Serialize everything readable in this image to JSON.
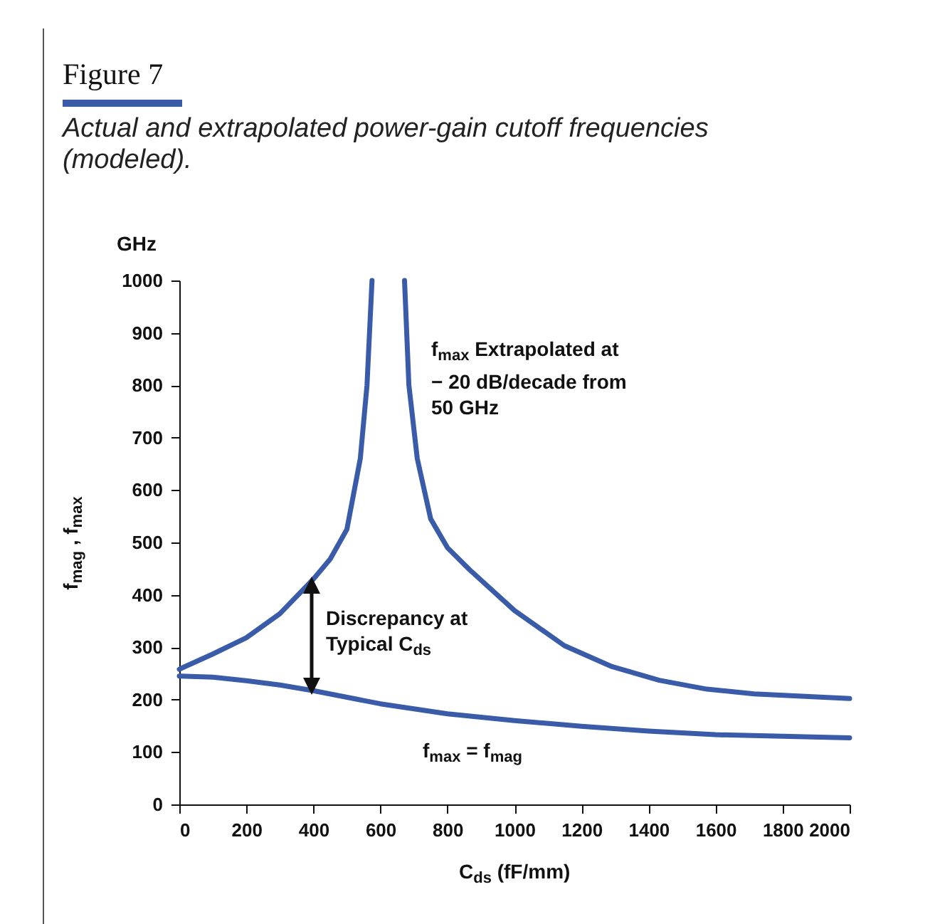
{
  "chart_data": {
    "type": "line",
    "title": "Figure 7",
    "subtitle": "Actual and extrapolated power-gain cutoff frequencies (modeled).",
    "xlabel": "C$_{ds}$ (fF/mm)",
    "ylabel": "f$_{mag}$ , f$_{max}$",
    "xlim": [
      0,
      2000
    ],
    "xticks": [
      0,
      200,
      400,
      600,
      800,
      1000,
      1200,
      1400,
      1600,
      1800,
      2000
    ],
    "ylim": [
      0,
      1000
    ],
    "yticks": [
      0,
      100,
      200,
      300,
      400,
      500,
      600,
      700,
      800,
      900,
      1000
    ],
    "grid": false,
    "legend": false,
    "marker": "none",
    "line_style": "solid",
    "series": [
      {
        "name": "f$_{max}$ Extrapolated at  − 20 dB/decade from 50 GHz",
        "color": "#3a5ba8",
        "x": [
          0,
          100,
          200,
          300,
          400,
          450,
          500,
          540,
          560,
          575,
          625,
          672,
          685,
          710,
          750,
          800,
          866,
          1000,
          1149,
          1291,
          1432,
          1574,
          1715,
          2000
        ],
        "values": [
          258,
          287,
          318,
          364,
          430,
          468,
          525,
          660,
          800,
          1000,
          null,
          1000,
          800,
          660,
          545,
          490,
          448,
          370,
          303,
          263,
          237,
          220,
          211,
          202
        ]
      },
      {
        "name": "f$_{max}$ = f$_{mag}$",
        "color": "#3a5ba8",
        "x": [
          0,
          100,
          200,
          300,
          400,
          600,
          800,
          1000,
          1200,
          1400,
          1600,
          1800,
          2000
        ],
        "values": [
          245,
          243,
          236,
          228,
          217,
          192,
          173,
          160,
          149,
          140,
          133,
          130,
          127
        ]
      }
    ],
    "annotations": [
      "GHz",
      "Discrepancy at Typical C$_{ds}$"
    ]
  }
}
